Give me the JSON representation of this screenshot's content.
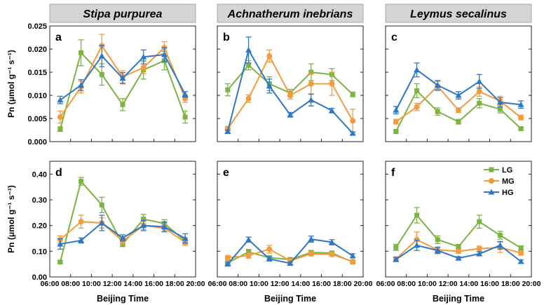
{
  "figure": {
    "ylabel": "Pn (μmol g⁻¹ s⁻¹)",
    "xlabel": "Beijing Time",
    "x_ticks": [
      "06:00",
      "08:00",
      "10:00",
      "12:00",
      "14:00",
      "16:00",
      "18:00",
      "20:00"
    ],
    "y_ticks_top": [
      "0.000",
      "0.005",
      "0.010",
      "0.015",
      "0.020",
      "0.025"
    ],
    "y_ticks_bottom": [
      "0.00",
      "0.10",
      "0.20",
      "0.30",
      "0.40"
    ],
    "column_titles": [
      "Stipa purpurea",
      "Achnatherum inebrians",
      "Leymus secalinus"
    ],
    "legend": [
      {
        "name": "LG",
        "color": "#7cb342",
        "marker": "square"
      },
      {
        "name": "MG",
        "color": "#f39b3d",
        "marker": "circle"
      },
      {
        "name": "HG",
        "color": "#2e78c5",
        "marker": "triangle"
      }
    ]
  },
  "chart_data": [
    {
      "type": "line",
      "panel_label": "a",
      "title": "Stipa purpurea",
      "xlabel": "",
      "ylabel": "Pn (μmol g⁻¹ s⁻¹)",
      "xlim": [
        6,
        20
      ],
      "ylim": [
        0,
        0.025
      ],
      "x": [
        7,
        9,
        11,
        13,
        15,
        17,
        19
      ],
      "series": [
        {
          "name": "LG",
          "values": [
            0.0027,
            0.0192,
            0.0145,
            0.008,
            0.0155,
            0.0175,
            0.0053
          ],
          "err": [
            0.0005,
            0.0028,
            0.0023,
            0.0013,
            0.002,
            0.002,
            0.0013
          ]
        },
        {
          "name": "MG",
          "values": [
            0.0053,
            0.0118,
            0.0207,
            0.014,
            0.016,
            0.0203,
            0.0093
          ],
          "err": [
            0.0013,
            0.0013,
            0.0025,
            0.0013,
            0.0013,
            0.0013,
            0.0008
          ]
        },
        {
          "name": "HG",
          "values": [
            0.009,
            0.0122,
            0.0185,
            0.0137,
            0.0183,
            0.0188,
            0.0102
          ],
          "err": [
            0.0008,
            0.0012,
            0.0023,
            0.0012,
            0.0015,
            0.0015,
            0.0006
          ]
        }
      ]
    },
    {
      "type": "line",
      "panel_label": "b",
      "title": "Achnatherum inebrians",
      "xlabel": "",
      "ylabel": "",
      "xlim": [
        6,
        20
      ],
      "ylim": [
        0,
        0.025
      ],
      "x": [
        7,
        9,
        11,
        13,
        15,
        17,
        19
      ],
      "series": [
        {
          "name": "LG",
          "values": [
            0.0112,
            0.0165,
            0.0125,
            0.0105,
            0.015,
            0.0145,
            0.0102
          ],
          "err": [
            0.0013,
            0.001,
            0.0015,
            0.0008,
            0.0018,
            0.0013,
            0.0005
          ]
        },
        {
          "name": "MG",
          "values": [
            0.0028,
            0.0093,
            0.0185,
            0.01,
            0.0125,
            0.0125,
            0.0045
          ],
          "err": [
            0.0005,
            0.0008,
            0.0013,
            0.0008,
            0.0023,
            0.0025,
            0.0025
          ]
        },
        {
          "name": "HG",
          "values": [
            0.0022,
            0.0198,
            0.012,
            0.0058,
            0.009,
            0.0067,
            0.0018
          ],
          "err": [
            0.0003,
            0.0028,
            0.0015,
            0.0005,
            0.0013,
            0.0005,
            0.0003
          ]
        }
      ]
    },
    {
      "type": "line",
      "panel_label": "c",
      "title": "Leymus secalinus",
      "xlabel": "",
      "ylabel": "",
      "xlim": [
        6,
        20
      ],
      "ylim": [
        0,
        0.025
      ],
      "x": [
        7,
        9,
        11,
        13,
        15,
        17,
        19
      ],
      "series": [
        {
          "name": "LG",
          "values": [
            0.0022,
            0.011,
            0.0065,
            0.0043,
            0.0083,
            0.007,
            0.0028
          ],
          "err": [
            0.0003,
            0.0015,
            0.0008,
            0.0005,
            0.001,
            0.0008,
            0.0003
          ]
        },
        {
          "name": "MG",
          "values": [
            0.0043,
            0.0075,
            0.012,
            0.0068,
            0.0108,
            0.0088,
            0.0052
          ],
          "err": [
            0.0005,
            0.0008,
            0.001,
            0.0005,
            0.001,
            0.001,
            0.0005
          ]
        },
        {
          "name": "HG",
          "values": [
            0.0068,
            0.0155,
            0.0122,
            0.01,
            0.013,
            0.0085,
            0.008
          ],
          "err": [
            0.0008,
            0.0015,
            0.001,
            0.0008,
            0.0015,
            0.001,
            0.0008
          ]
        }
      ]
    },
    {
      "type": "line",
      "panel_label": "d",
      "title": "",
      "xlabel": "Beijing Time",
      "ylabel": "Pn (μmol g⁻¹ s⁻¹)",
      "xlim": [
        6,
        20
      ],
      "ylim": [
        0,
        0.45
      ],
      "x": [
        7,
        9,
        11,
        13,
        15,
        17,
        19
      ],
      "series": [
        {
          "name": "LG",
          "values": [
            0.058,
            0.372,
            0.28,
            0.128,
            0.225,
            0.208,
            0.14
          ],
          "err": [
            0.005,
            0.015,
            0.03,
            0.01,
            0.018,
            0.015,
            0.012
          ]
        },
        {
          "name": "MG",
          "values": [
            0.145,
            0.215,
            0.21,
            0.14,
            0.2,
            0.19,
            0.135
          ],
          "err": [
            0.015,
            0.025,
            0.02,
            0.012,
            0.015,
            0.015,
            0.012
          ]
        },
        {
          "name": "HG",
          "values": [
            0.128,
            0.142,
            0.21,
            0.152,
            0.2,
            0.195,
            0.15
          ],
          "err": [
            0.02,
            0.01,
            0.03,
            0.012,
            0.02,
            0.018,
            0.018
          ]
        }
      ]
    },
    {
      "type": "line",
      "panel_label": "e",
      "title": "",
      "xlabel": "Beijing Time",
      "ylabel": "",
      "xlim": [
        6,
        20
      ],
      "ylim": [
        0,
        0.45
      ],
      "x": [
        7,
        9,
        11,
        13,
        15,
        17,
        19
      ],
      "series": [
        {
          "name": "LG",
          "values": [
            0.055,
            0.097,
            0.075,
            0.068,
            0.095,
            0.093,
            0.058
          ],
          "err": [
            0.005,
            0.01,
            0.008,
            0.005,
            0.008,
            0.008,
            0.005
          ]
        },
        {
          "name": "MG",
          "values": [
            0.075,
            0.083,
            0.108,
            0.063,
            0.09,
            0.088,
            0.06
          ],
          "err": [
            0.008,
            0.01,
            0.015,
            0.005,
            0.008,
            0.008,
            0.005
          ]
        },
        {
          "name": "HG",
          "values": [
            0.05,
            0.145,
            0.07,
            0.053,
            0.147,
            0.135,
            0.082
          ],
          "err": [
            0.005,
            0.01,
            0.008,
            0.005,
            0.012,
            0.01,
            0.008
          ]
        }
      ]
    },
    {
      "type": "line",
      "panel_label": "f",
      "title": "",
      "xlabel": "Beijing Time",
      "ylabel": "",
      "xlim": [
        6,
        20
      ],
      "ylim": [
        0,
        0.45
      ],
      "x": [
        7,
        9,
        11,
        13,
        15,
        17,
        19
      ],
      "series": [
        {
          "name": "LG",
          "values": [
            0.115,
            0.24,
            0.145,
            0.118,
            0.215,
            0.162,
            0.113
          ],
          "err": [
            0.012,
            0.03,
            0.015,
            0.008,
            0.025,
            0.015,
            0.008
          ]
        },
        {
          "name": "MG",
          "values": [
            0.07,
            0.145,
            0.105,
            0.1,
            0.11,
            0.115,
            0.093
          ],
          "err": [
            0.008,
            0.03,
            0.012,
            0.008,
            0.01,
            0.02,
            0.008
          ]
        },
        {
          "name": "HG",
          "values": [
            0.068,
            0.123,
            0.103,
            0.073,
            0.09,
            0.123,
            0.06
          ],
          "err": [
            0.008,
            0.02,
            0.012,
            0.006,
            0.008,
            0.015,
            0.006
          ]
        }
      ]
    }
  ]
}
